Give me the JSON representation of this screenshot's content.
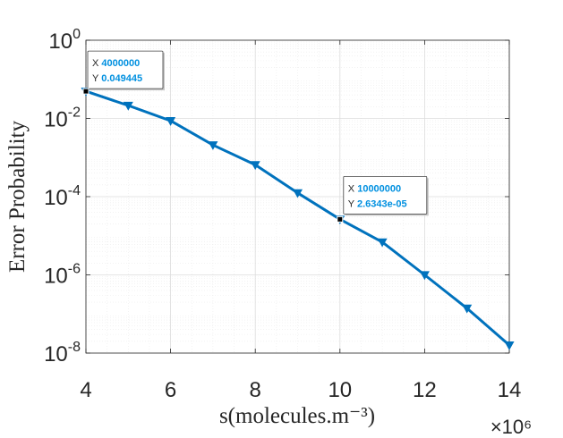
{
  "chart_data": {
    "type": "line",
    "title": "",
    "xlabel": "s(molecules.m⁻³)",
    "ylabel": "Error Probability",
    "x_multiplier": "×10⁶",
    "xlim": [
      4,
      14
    ],
    "ylim": [
      1e-08,
      1
    ],
    "yscale": "log",
    "grid": true,
    "minor_grid": true,
    "x_ticks": [
      4,
      6,
      8,
      10,
      12,
      14
    ],
    "x_tick_labels": [
      "4",
      "6",
      "8",
      "10",
      "12",
      "14"
    ],
    "y_ticks": [
      1e-08,
      1e-06,
      0.0001,
      0.01,
      1
    ],
    "y_tick_labels": [
      {
        "base": "10",
        "exp": "-8"
      },
      {
        "base": "10",
        "exp": "-6"
      },
      {
        "base": "10",
        "exp": "-4"
      },
      {
        "base": "10",
        "exp": "-2"
      },
      {
        "base": "10",
        "exp": "0"
      }
    ],
    "series": [
      {
        "color": "#0072BD",
        "marker": "triangle-down",
        "x": [
          4,
          5,
          6,
          7,
          8,
          9,
          10,
          11,
          12,
          13,
          14
        ],
        "y": [
          0.049445,
          0.0215,
          0.0087,
          0.0021,
          0.00065,
          0.000125,
          2.6343e-05,
          6.9e-06,
          1e-06,
          1.4e-07,
          1.6e-08
        ]
      }
    ],
    "datatips": [
      {
        "x_label": "X",
        "x_value": "4000000",
        "y_label": "Y",
        "y_value": "0.049445",
        "point_index": 0
      },
      {
        "x_label": "X",
        "x_value": "10000000",
        "y_label": "Y",
        "y_value": "2.6343e-05",
        "point_index": 6
      }
    ],
    "colors": {
      "line": "#0072BD",
      "datatip_value": "#0090E0",
      "axis": "#262626",
      "major_grid": "#dcdcdc",
      "minor_grid": "#ebebeb"
    }
  }
}
